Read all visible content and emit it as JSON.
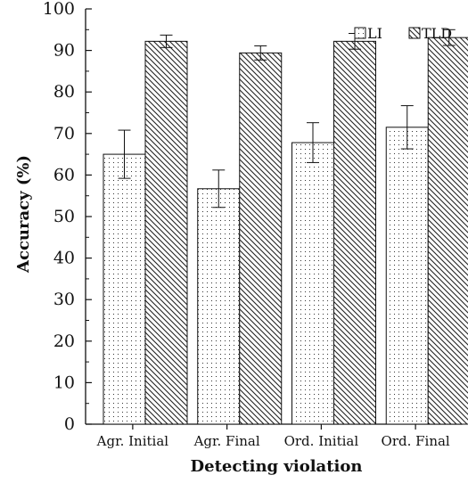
{
  "chart_data": {
    "type": "bar",
    "categories": [
      "Agr. Initial",
      "Agr. Final",
      "Ord. Initial",
      "Ord. Final"
    ],
    "series": [
      {
        "name": "LI",
        "values": [
          65.0,
          56.7,
          67.8,
          71.5
        ],
        "error": [
          5.8,
          4.5,
          4.8,
          5.2
        ]
      },
      {
        "name": "TLD",
        "values": [
          92.2,
          89.4,
          92.2,
          93.1
        ],
        "error": [
          1.5,
          1.7,
          1.9,
          1.9
        ]
      }
    ],
    "xlabel": "Detecting violation",
    "ylabel": "Accuracy (%)",
    "ylim": [
      0,
      100
    ],
    "yticks": [
      0,
      10,
      20,
      30,
      40,
      50,
      60,
      70,
      80,
      90,
      100
    ],
    "legend_position": "top-right",
    "grid": false,
    "error_bars": true,
    "series_patterns": [
      "dots",
      "diagonal-hatch"
    ]
  }
}
